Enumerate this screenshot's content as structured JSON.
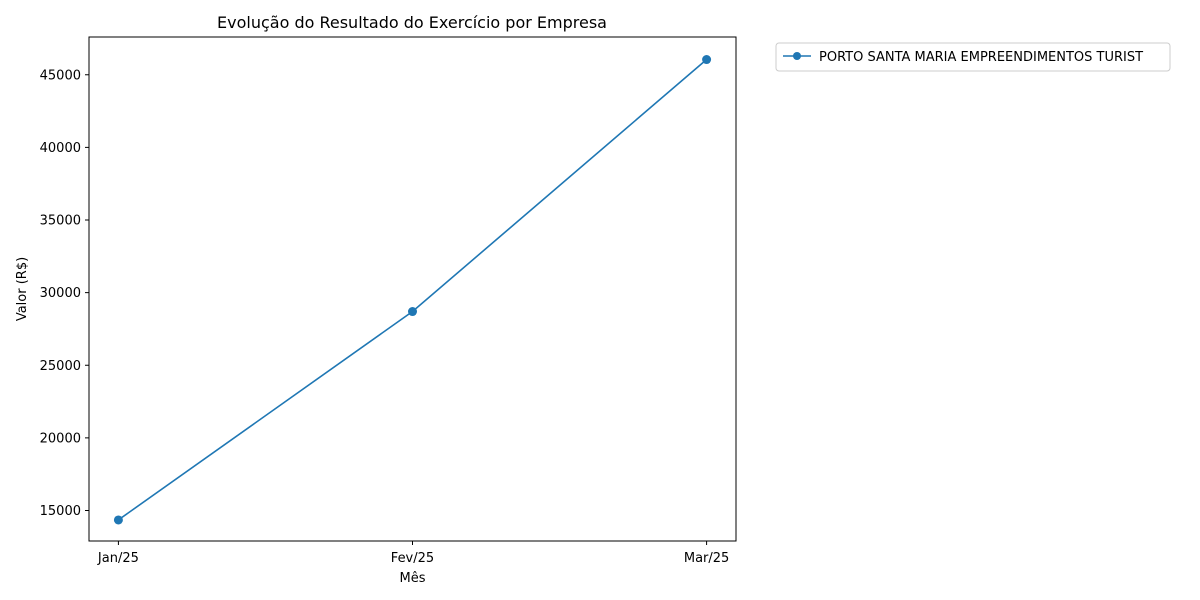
{
  "chart_data": {
    "type": "line",
    "title": "Evolução do Resultado do Exercício por Empresa",
    "xlabel": "Mês",
    "ylabel": "Valor (R$)",
    "categories": [
      "Jan/25",
      "Fev/25",
      "Mar/25"
    ],
    "ylim": [
      12900,
      47600
    ],
    "yticks": [
      15000,
      20000,
      25000,
      30000,
      35000,
      40000,
      45000
    ],
    "grid": false,
    "legend_position": "outside-top-right",
    "series": [
      {
        "name": "PORTO SANTA MARIA EMPREENDIMENTOS TURIST",
        "color": "#1f77b4",
        "marker": "circle",
        "values": [
          14350,
          28700,
          46050
        ]
      }
    ]
  }
}
